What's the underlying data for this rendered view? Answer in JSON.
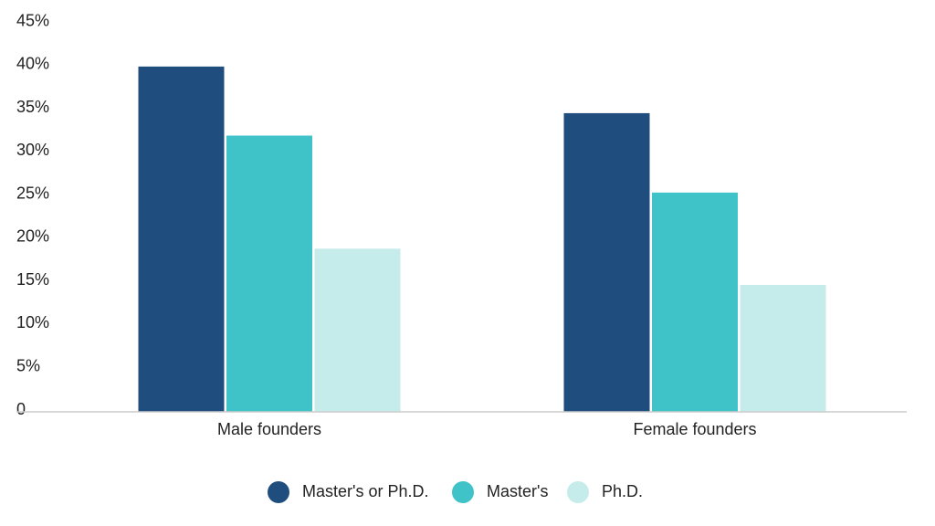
{
  "chart_data": {
    "type": "bar",
    "categories": [
      "Male founders",
      "Female founders"
    ],
    "series": [
      {
        "name": "Master's or Ph.D.",
        "color": "#1f4e7e",
        "values": [
          40,
          34.6
        ]
      },
      {
        "name": "Master's",
        "color": "#40c3c8",
        "values": [
          32,
          25.4
        ]
      },
      {
        "name": "Ph.D.",
        "color": "#c5ecea",
        "values": [
          18.9,
          14.7
        ]
      }
    ],
    "ylim": [
      0,
      45
    ],
    "yticks": [
      0,
      {
        "value": 5,
        "label": "5%"
      },
      {
        "value": 10,
        "label": "10%"
      },
      {
        "value": 15,
        "label": "15%"
      },
      {
        "value": 20,
        "label": "20%"
      },
      {
        "value": 25,
        "label": "25%"
      },
      {
        "value": 30,
        "label": "30%"
      },
      {
        "value": 35,
        "label": "35%"
      },
      {
        "value": 40,
        "label": "40%"
      },
      {
        "value": 45,
        "label": "45%"
      }
    ],
    "grid": false,
    "legend": "bottom"
  }
}
